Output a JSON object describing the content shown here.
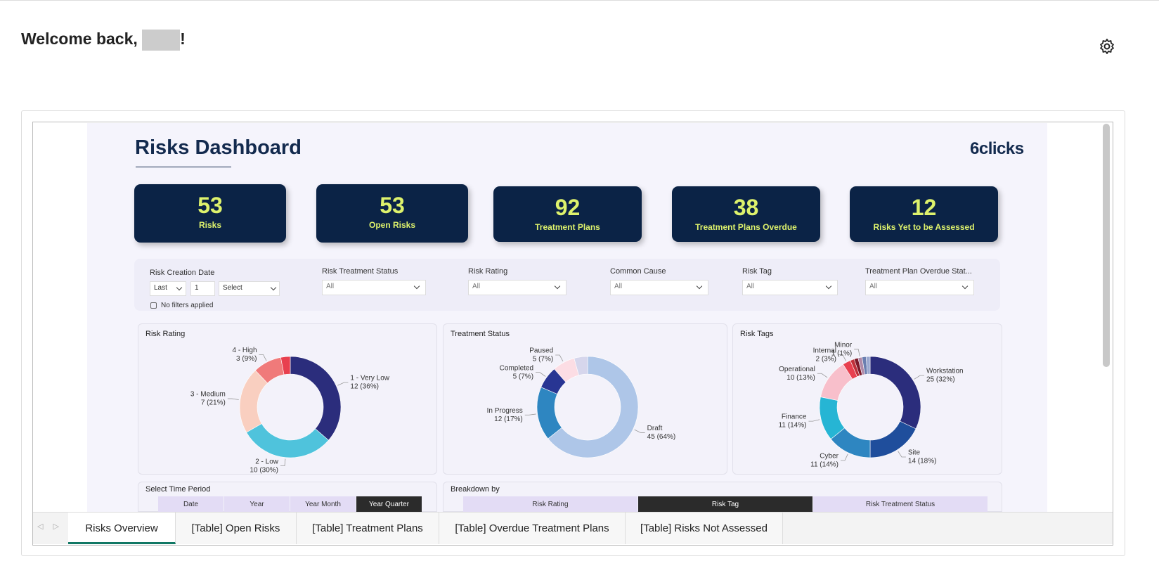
{
  "header": {
    "greeting": "Welcome back,",
    "suffix": "!"
  },
  "dashboard": {
    "title": "Risks Dashboard",
    "logo": "6clicks",
    "kpis": [
      {
        "value": 53,
        "label": "Risks"
      },
      {
        "value": 53,
        "label": "Open Risks"
      },
      {
        "value": 92,
        "label": "Treatment Plans"
      },
      {
        "value": 38,
        "label": "Treatment Plans Overdue"
      },
      {
        "value": 12,
        "label": "Risks Yet to be Assessed"
      }
    ],
    "date_filter": {
      "label": "Risk Creation Date",
      "period": "Last",
      "count": 1,
      "unit": "Select",
      "note": "No filters applied"
    },
    "filters": [
      {
        "label": "Risk Treatment Status",
        "value": "All"
      },
      {
        "label": "Risk Rating",
        "value": "All"
      },
      {
        "label": "Common Cause",
        "value": "All"
      },
      {
        "label": "Risk Tag",
        "value": "All"
      },
      {
        "label": "Treatment Plan Overdue Stat...",
        "value": "All"
      }
    ],
    "time_period": {
      "title": "Select Time Period",
      "options": [
        "Date",
        "Year",
        "Year Month",
        "Year Quarter"
      ],
      "selected": 3
    },
    "breakdown": {
      "title": "Breakdown by",
      "options": [
        "Risk Rating",
        "Risk Tag",
        "Risk Treatment Status"
      ],
      "selected": 1
    }
  },
  "chart_data": [
    {
      "type": "donut",
      "title": "Risk Rating",
      "categories": [
        "1 - Very Low",
        "2 - Low",
        "3 - Medium",
        "4 - High",
        null
      ],
      "values": [
        12,
        10,
        7,
        3,
        1
      ],
      "value_labels": [
        "12 (36%)",
        "10 (30%)",
        "7 (21%)",
        "3 (9%)",
        null
      ],
      "colors": [
        "#2b2d7c",
        "#4fc3dc",
        "#f9cfc0",
        "#f07a7a",
        "#e8404f"
      ]
    },
    {
      "type": "donut",
      "title": "Treatment Status",
      "categories": [
        "Draft",
        "In Progress",
        "Completed",
        "Paused",
        null
      ],
      "values": [
        45,
        12,
        5,
        5,
        3
      ],
      "value_labels": [
        "45 (64%)",
        "12 (17%)",
        "5 (7%)",
        "5 (7%)",
        null
      ],
      "colors": [
        "#aec6e8",
        "#2e86c1",
        "#283593",
        "#fcdde4",
        "#d6d6ec"
      ]
    },
    {
      "type": "donut",
      "title": "Risk Tags",
      "categories": [
        "Workstation",
        "Site",
        "Cyber",
        "Finance",
        "Operational",
        "Internal",
        null,
        null,
        "Minor",
        null,
        null
      ],
      "values": [
        25,
        14,
        11,
        11,
        10,
        2,
        1,
        1,
        1,
        1,
        1
      ],
      "value_labels": [
        "25 (32%)",
        "14 (18%)",
        "11 (14%)",
        "11 (14%)",
        "10 (13%)",
        "2 (3%)",
        null,
        null,
        "1 (1%)",
        null,
        null
      ],
      "colors": [
        "#2b2d7c",
        "#1f4e9c",
        "#2e86c1",
        "#26b5d4",
        "#f8bfcb",
        "#e8404f",
        "#c0303a",
        "#7d1a2a",
        "#b08aa8",
        "#6b7fb0",
        "#9aa8d0"
      ]
    }
  ],
  "tabs": {
    "items": [
      "Risks Overview",
      "[Table] Open Risks",
      "[Table] Treatment Plans",
      "[Table] Overdue Treatment Plans",
      "[Table] Risks Not Assessed"
    ],
    "active": 0
  }
}
